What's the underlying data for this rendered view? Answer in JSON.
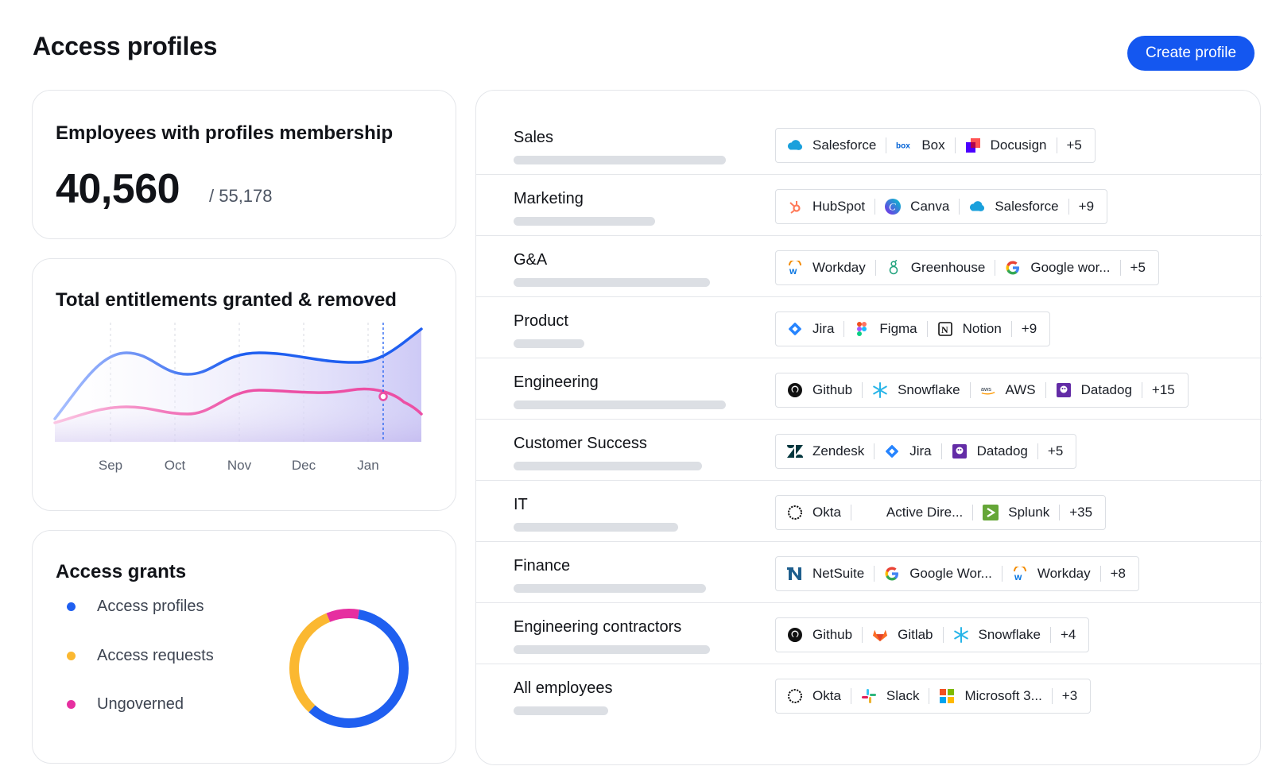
{
  "header": {
    "title": "Access profiles",
    "create_label": "Create profile"
  },
  "membership": {
    "title": "Employees with profiles membership",
    "count": "40,560",
    "total": "/ 55,178"
  },
  "entitlements_chart": {
    "title": "Total entitlements granted & removed",
    "months": [
      "Sep",
      "Oct",
      "Nov",
      "Dec",
      "Jan"
    ],
    "colors": {
      "granted": "#1f5ff0",
      "removed": "#ec4fa4",
      "area": "#c8c4f5"
    }
  },
  "chart_data": {
    "type": "area",
    "title": "Total entitlements granted & removed",
    "x": [
      "Sep",
      "Oct",
      "Nov",
      "Dec",
      "Jan"
    ],
    "y_axis_labels": "none",
    "grid": "vertical dashed"
  },
  "grants": {
    "title": "Access grants",
    "legend": [
      {
        "label": "Access profiles",
        "color": "#1f5ff0",
        "share": 0.59
      },
      {
        "label": "Access requests",
        "color": "#fbb831",
        "share": 0.32
      },
      {
        "label": "Ungoverned",
        "color": "#e62fa0",
        "share": 0.09
      }
    ]
  },
  "profiles": [
    {
      "name": "Sales",
      "bar": 0.27,
      "apps": [
        {
          "name": "Salesforce",
          "icon": "salesforce-icon"
        },
        {
          "name": "Box",
          "icon": "box-icon"
        },
        {
          "name": "Docusign",
          "icon": "docusign-icon"
        }
      ],
      "more": "+5"
    },
    {
      "name": "Marketing",
      "bar": 0.18,
      "apps": [
        {
          "name": "HubSpot",
          "icon": "hubspot-icon"
        },
        {
          "name": "Canva",
          "icon": "canva-icon"
        },
        {
          "name": "Salesforce",
          "icon": "salesforce-icon"
        }
      ],
      "more": "+9"
    },
    {
      "name": "G&A",
      "bar": 0.25,
      "apps": [
        {
          "name": "Workday",
          "icon": "workday-icon"
        },
        {
          "name": "Greenhouse",
          "icon": "greenhouse-icon"
        },
        {
          "name": "Google wor...",
          "icon": "google-icon"
        }
      ],
      "more": "+5"
    },
    {
      "name": "Product",
      "bar": 0.09,
      "apps": [
        {
          "name": "Jira",
          "icon": "jira-icon"
        },
        {
          "name": "Figma",
          "icon": "figma-icon"
        },
        {
          "name": "Notion",
          "icon": "notion-icon"
        }
      ],
      "more": "+9"
    },
    {
      "name": "Engineering",
      "bar": 0.27,
      "apps": [
        {
          "name": "Github",
          "icon": "github-icon"
        },
        {
          "name": "Snowflake",
          "icon": "snowflake-icon"
        },
        {
          "name": "AWS",
          "icon": "aws-icon"
        },
        {
          "name": "Datadog",
          "icon": "datadog-icon"
        }
      ],
      "more": "+15"
    },
    {
      "name": "Customer Success",
      "bar": 0.24,
      "apps": [
        {
          "name": "Zendesk",
          "icon": "zendesk-icon"
        },
        {
          "name": "Jira",
          "icon": "jira-icon"
        },
        {
          "name": "Datadog",
          "icon": "datadog-icon"
        }
      ],
      "more": "+5"
    },
    {
      "name": "IT",
      "bar": 0.21,
      "apps": [
        {
          "name": "Okta",
          "icon": "okta-icon"
        },
        {
          "name": "Active Dire...",
          "icon": "active-directory-icon"
        },
        {
          "name": "Splunk",
          "icon": "splunk-icon"
        }
      ],
      "more": "+35"
    },
    {
      "name": "Finance",
      "bar": 0.245,
      "apps": [
        {
          "name": "NetSuite",
          "icon": "netsuite-icon"
        },
        {
          "name": "Google Wor...",
          "icon": "google-icon"
        },
        {
          "name": "Workday",
          "icon": "workday-icon"
        }
      ],
      "more": "+8"
    },
    {
      "name": "Engineering contractors",
      "bar": 0.25,
      "apps": [
        {
          "name": "Github",
          "icon": "github-icon"
        },
        {
          "name": "Gitlab",
          "icon": "gitlab-icon"
        },
        {
          "name": "Snowflake",
          "icon": "snowflake-icon"
        }
      ],
      "more": "+4"
    },
    {
      "name": "All employees",
      "bar": 0.12,
      "apps": [
        {
          "name": "Okta",
          "icon": "okta-icon"
        },
        {
          "name": "Slack",
          "icon": "slack-icon"
        },
        {
          "name": "Microsoft 3...",
          "icon": "microsoft-icon"
        }
      ],
      "more": "+3"
    }
  ]
}
